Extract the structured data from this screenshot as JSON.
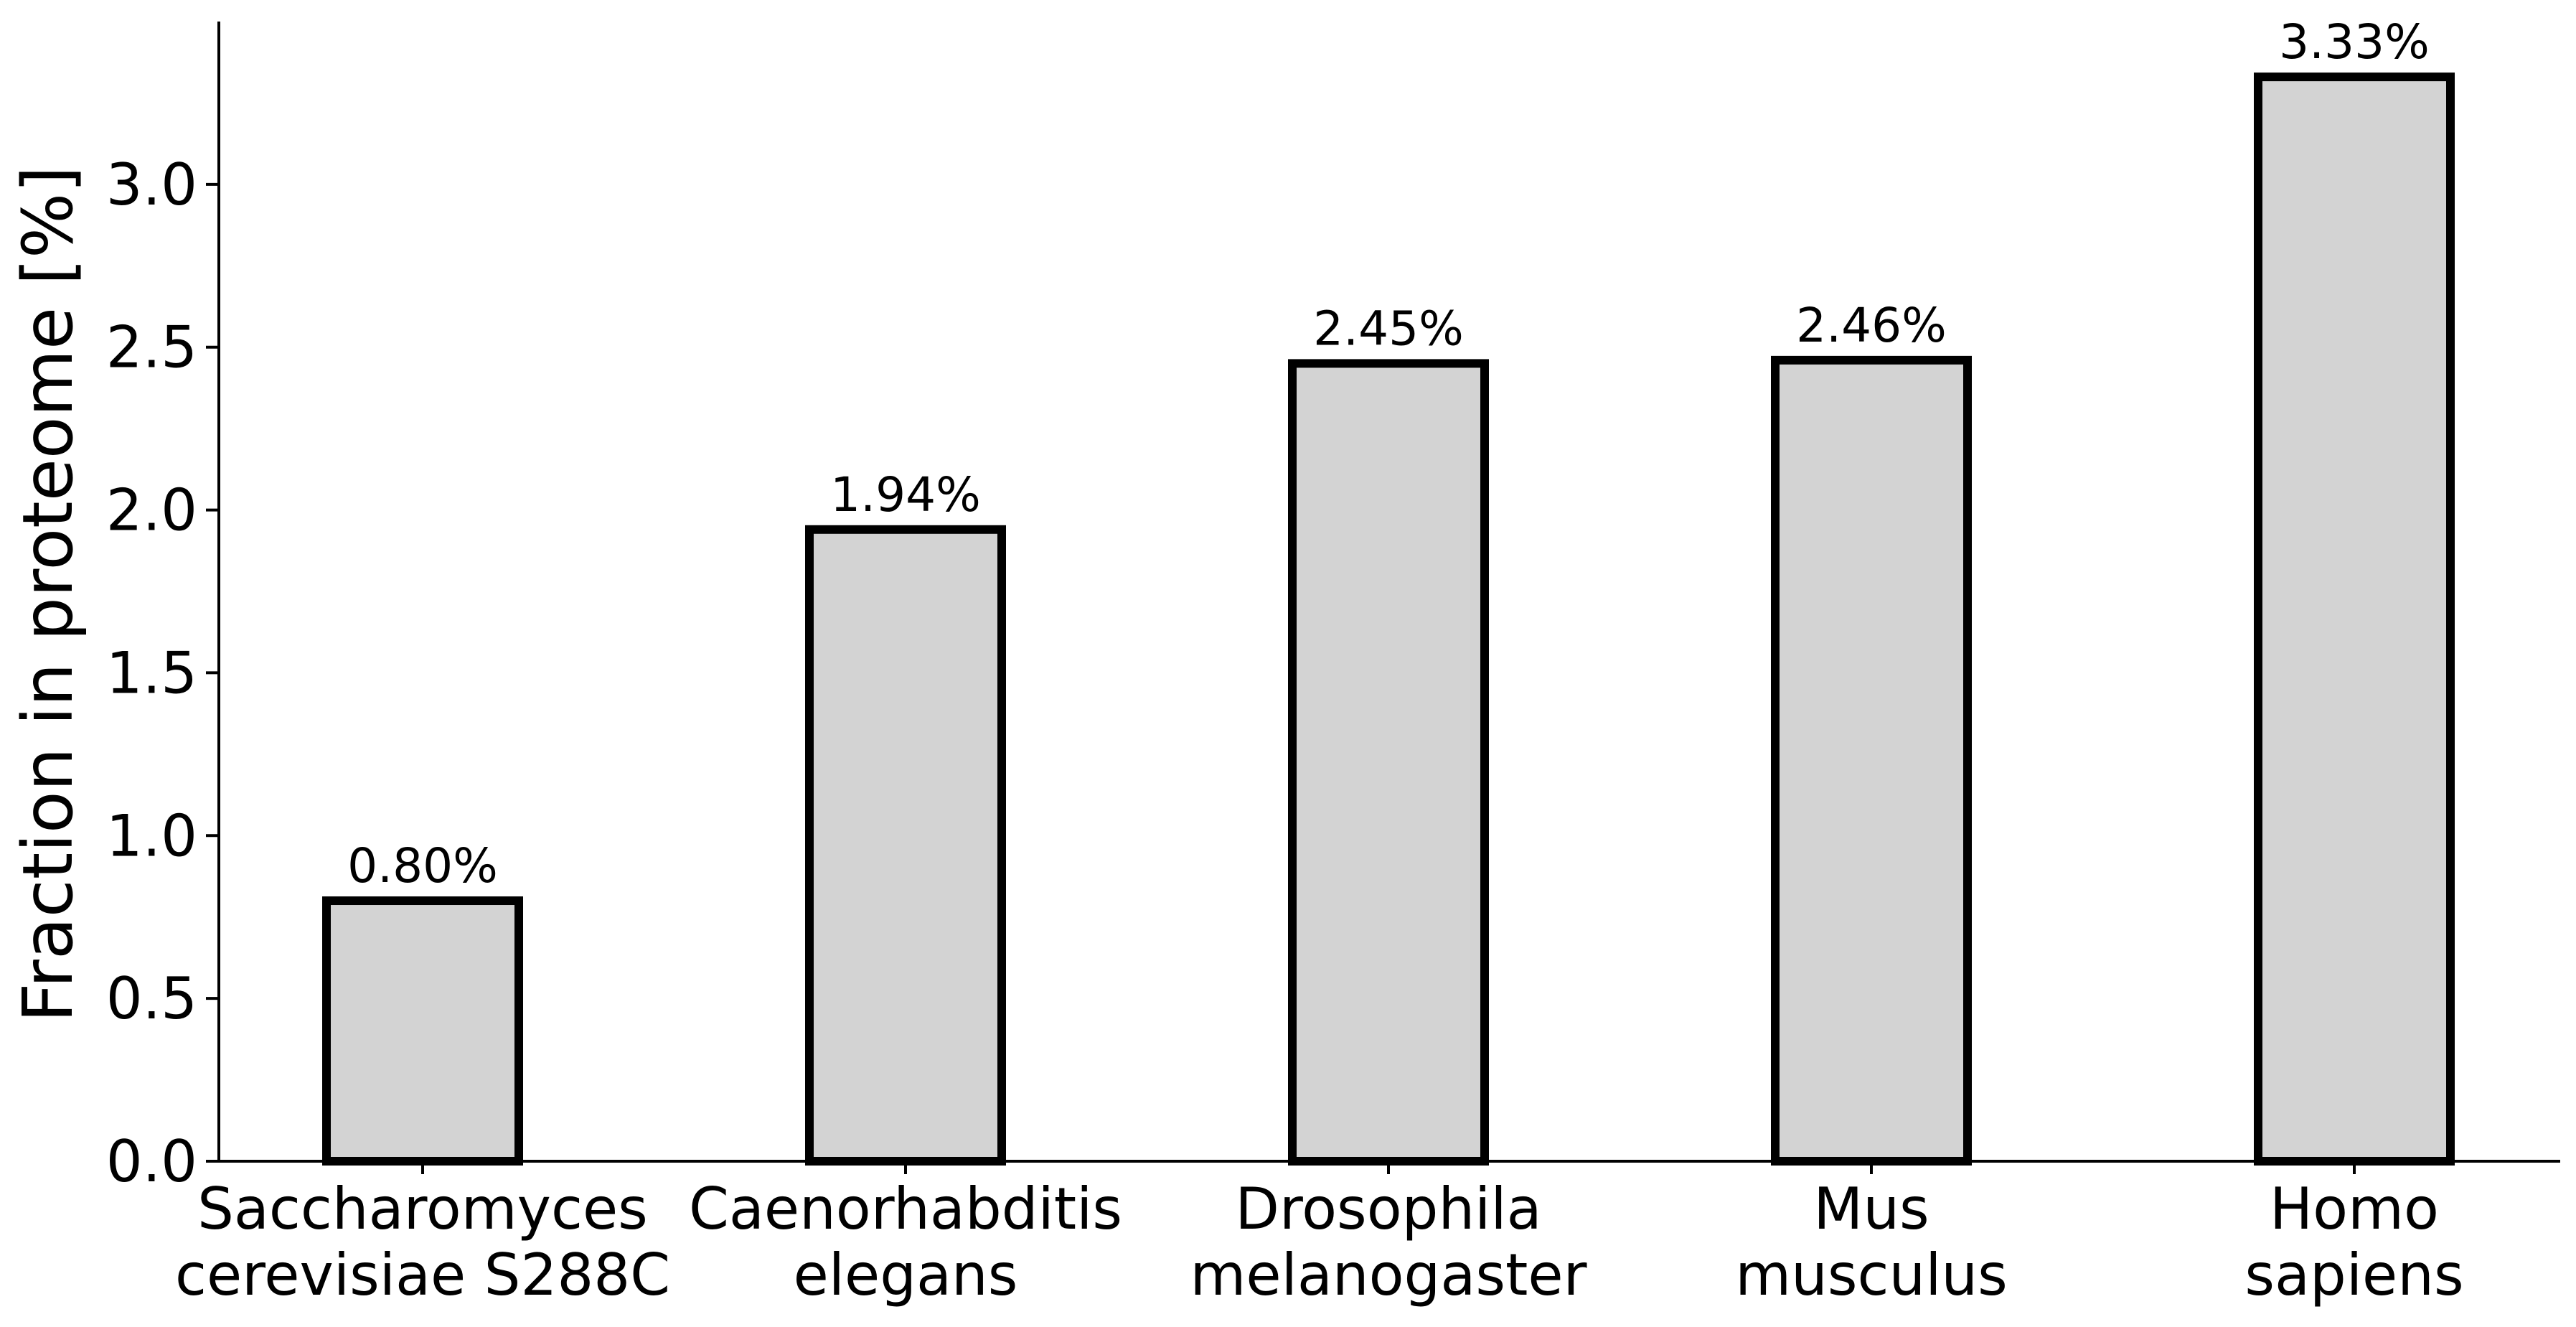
{
  "chart_data": {
    "type": "bar",
    "categories": [
      [
        "Saccharomyces",
        "cerevisiae S288C"
      ],
      [
        "Caenorhabditis",
        "elegans"
      ],
      [
        "Drosophila",
        "melanogaster"
      ],
      [
        "Mus",
        "musculus"
      ],
      [
        "Homo",
        "sapiens"
      ]
    ],
    "values": [
      0.8,
      1.94,
      2.45,
      2.46,
      3.33
    ],
    "data_labels": [
      "0.80%",
      "1.94%",
      "2.45%",
      "2.46%",
      "3.33%"
    ],
    "ylabel": "Fraction in proteome [%]",
    "xlabel": "",
    "ylim": [
      0,
      3.5
    ],
    "yticks": [
      "0.0",
      "0.5",
      "1.0",
      "1.5",
      "2.0",
      "2.5",
      "3.0"
    ],
    "bar_fill": "#d3d3d3",
    "bar_edge": "#000000",
    "grid": false,
    "legend": "none"
  }
}
